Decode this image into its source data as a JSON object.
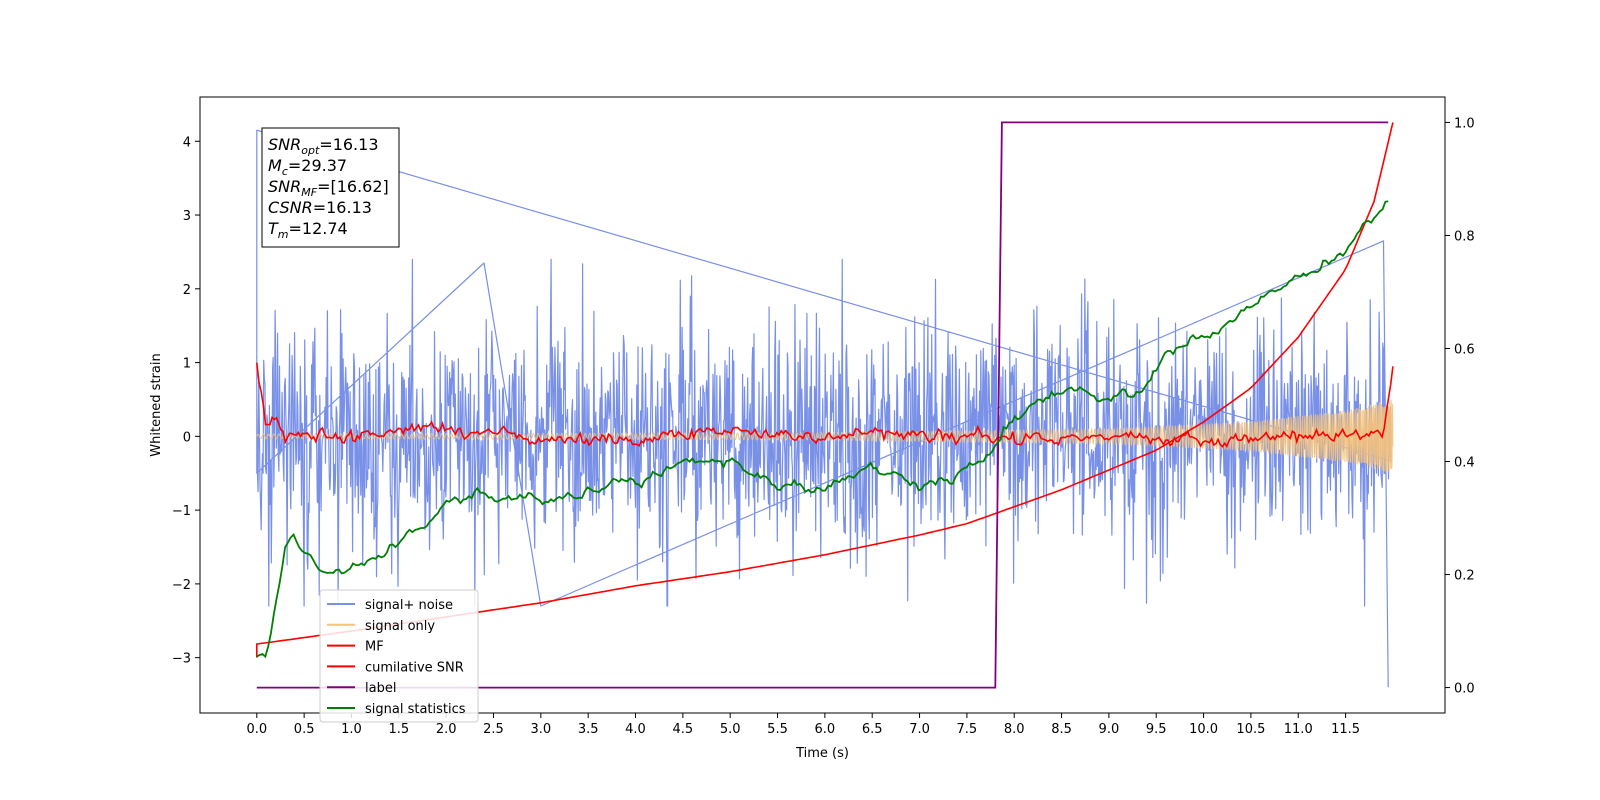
{
  "chart_data": {
    "type": "line",
    "xlabel": "Time (s)",
    "ylabel": "Whitened strain",
    "xlim": [
      -0.6,
      12.55
    ],
    "ylim": [
      -3.75,
      4.6
    ],
    "y2lim": [
      -0.045,
      1.045
    ],
    "x_ticks": [
      "0.0",
      "0.5",
      "1.0",
      "1.5",
      "2.0",
      "2.5",
      "3.0",
      "3.5",
      "4.0",
      "4.5",
      "5.0",
      "5.5",
      "6.0",
      "6.5",
      "7.0",
      "7.5",
      "8.0",
      "8.5",
      "9.0",
      "9.5",
      "10.0",
      "10.5",
      "11.0",
      "11.5"
    ],
    "y_ticks": [
      "−3",
      "−2",
      "−1",
      "0",
      "1",
      "2",
      "3",
      "4"
    ],
    "y2_ticks": [
      "0.0",
      "0.2",
      "0.4",
      "0.6",
      "0.8",
      "1.0"
    ],
    "legend_position": "lower-left",
    "grid": false,
    "stats_box": [
      {
        "symbol": "SNR",
        "sub": "opt",
        "value": "=16.13"
      },
      {
        "symbol": "M",
        "sub": "c",
        "value": "=29.37"
      },
      {
        "symbol": "SNR",
        "sub": "MF",
        "value": "=[16.62]"
      },
      {
        "symbol": "CSNR",
        "sub": "",
        "value": "=16.13"
      },
      {
        "symbol": "T",
        "sub": "m",
        "value": "=12.74"
      }
    ],
    "series": [
      {
        "name": "signal+ noise",
        "color": "#7890e8",
        "axis": "left",
        "style": "noise band, std ~0.75, range about -2.3 to 2.4, spikes 4.15 at t=0 and -3.4 at t=11.95",
        "points": [
          [
            0.0,
            4.15
          ],
          [
            0.0,
            -0.5
          ],
          [
            2.4,
            2.35
          ],
          [
            3.0,
            -2.3
          ],
          [
            11.9,
            2.65
          ],
          [
            11.95,
            -3.4
          ]
        ]
      },
      {
        "name": "signal only",
        "color": "#f5c27a",
        "axis": "left",
        "style": "chirp, amplitude grows from ~0.03 to ~0.5",
        "amplitude": [
          [
            0.0,
            0.03
          ],
          [
            6.0,
            0.05
          ],
          [
            9.0,
            0.1
          ],
          [
            10.5,
            0.2
          ],
          [
            11.5,
            0.35
          ],
          [
            12.0,
            0.5
          ]
        ]
      },
      {
        "name": "MF",
        "color": "#ff0000",
        "axis": "left",
        "points": [
          [
            0.0,
            1.0
          ],
          [
            0.1,
            0.1
          ],
          [
            0.2,
            0.2
          ],
          [
            0.3,
            0.0
          ],
          [
            1.0,
            0.02
          ],
          [
            2.0,
            0.1
          ],
          [
            3.0,
            -0.02
          ],
          [
            4.0,
            -0.05
          ],
          [
            5.0,
            0.05
          ],
          [
            6.0,
            -0.02
          ],
          [
            7.0,
            0.03
          ],
          [
            8.0,
            -0.05
          ],
          [
            9.0,
            0.0
          ],
          [
            10.0,
            -0.05
          ],
          [
            11.0,
            0.03
          ],
          [
            11.9,
            0.0
          ],
          [
            12.0,
            0.95
          ]
        ]
      },
      {
        "name": "cumilative SNR",
        "color": "#ff0000",
        "axis": "right",
        "points": [
          [
            0.0,
            0.077
          ],
          [
            1.0,
            0.1
          ],
          [
            2.0,
            0.125
          ],
          [
            3.0,
            0.15
          ],
          [
            4.0,
            0.18
          ],
          [
            5.0,
            0.205
          ],
          [
            6.0,
            0.235
          ],
          [
            7.0,
            0.27
          ],
          [
            7.5,
            0.29
          ],
          [
            8.0,
            0.32
          ],
          [
            8.5,
            0.35
          ],
          [
            9.0,
            0.385
          ],
          [
            9.5,
            0.42
          ],
          [
            10.0,
            0.47
          ],
          [
            10.5,
            0.53
          ],
          [
            11.0,
            0.62
          ],
          [
            11.5,
            0.74
          ],
          [
            11.8,
            0.86
          ],
          [
            12.0,
            1.0
          ]
        ]
      },
      {
        "name": "label",
        "color": "#800080",
        "axis": "right",
        "points": [
          [
            0.0,
            0.0
          ],
          [
            7.8,
            0.0
          ],
          [
            7.87,
            1.0
          ],
          [
            11.95,
            1.0
          ]
        ]
      },
      {
        "name": "signal statistics",
        "color": "#008000",
        "axis": "right",
        "points": [
          [
            0.0,
            0.05
          ],
          [
            0.1,
            0.04
          ],
          [
            0.2,
            0.15
          ],
          [
            0.3,
            0.25
          ],
          [
            0.4,
            0.26
          ],
          [
            0.5,
            0.24
          ],
          [
            0.7,
            0.2
          ],
          [
            1.0,
            0.21
          ],
          [
            1.5,
            0.26
          ],
          [
            2.0,
            0.32
          ],
          [
            2.2,
            0.33
          ],
          [
            2.3,
            0.35
          ],
          [
            3.0,
            0.33
          ],
          [
            4.0,
            0.36
          ],
          [
            4.5,
            0.4
          ],
          [
            5.0,
            0.4
          ],
          [
            5.5,
            0.36
          ],
          [
            6.0,
            0.35
          ],
          [
            6.5,
            0.39
          ],
          [
            7.0,
            0.36
          ],
          [
            7.5,
            0.38
          ],
          [
            7.75,
            0.42
          ],
          [
            7.9,
            0.46
          ],
          [
            8.2,
            0.5
          ],
          [
            8.5,
            0.53
          ],
          [
            9.0,
            0.51
          ],
          [
            9.4,
            0.53
          ],
          [
            9.6,
            0.59
          ],
          [
            10.0,
            0.62
          ],
          [
            10.3,
            0.65
          ],
          [
            10.5,
            0.68
          ],
          [
            11.0,
            0.72
          ],
          [
            11.5,
            0.77
          ],
          [
            11.75,
            0.83
          ],
          [
            11.95,
            0.86
          ]
        ]
      }
    ]
  }
}
